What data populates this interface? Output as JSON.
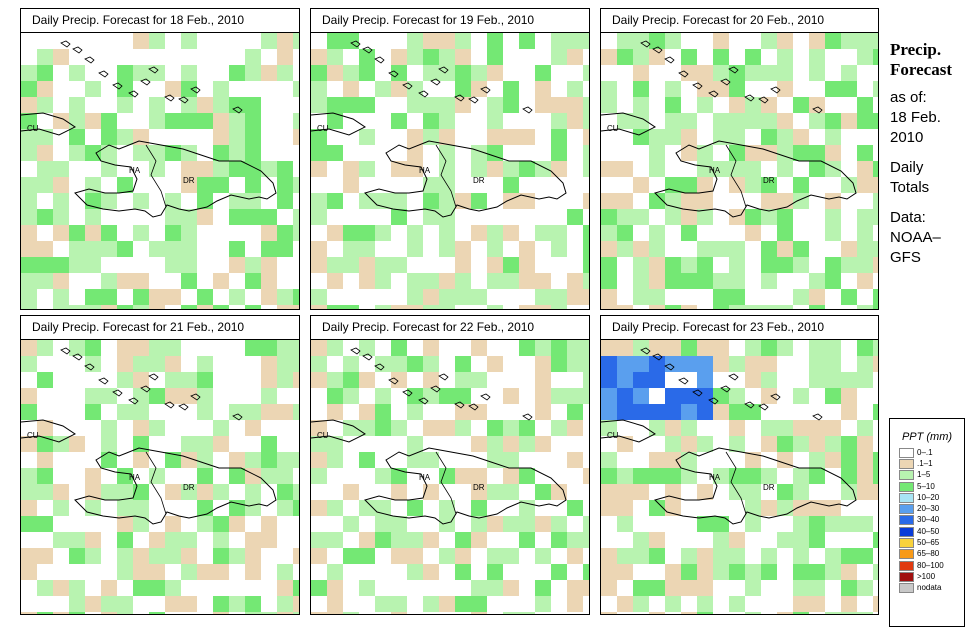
{
  "panels": [
    {
      "title": "Daily Precip. Forecast for  18 Feb., 2010",
      "day": 18
    },
    {
      "title": "Daily Precip. Forecast for  19 Feb., 2010",
      "day": 19
    },
    {
      "title": "Daily Precip. Forecast for  20 Feb., 2010",
      "day": 20
    },
    {
      "title": "Daily Precip. Forecast for  21 Feb., 2010",
      "day": 21
    },
    {
      "title": "Daily Precip. Forecast for  22 Feb., 2010",
      "day": 22
    },
    {
      "title": "Daily Precip. Forecast for  23 Feb., 2010",
      "day": 23
    }
  ],
  "map_labels": {
    "cuba": "CU",
    "haiti": "HA",
    "dr": "DR"
  },
  "side": {
    "title_line1": "Precip.",
    "title_line2": "Forecast",
    "asof": "as of:",
    "date_line1": "18 Feb.",
    "date_line2": "2010",
    "totals_line1": "Daily",
    "totals_line2": "Totals",
    "data_line1": "Data:",
    "data_line2": "NOAA–",
    "data_line3": "GFS"
  },
  "legend": {
    "title": "PPT (mm)",
    "items": [
      {
        "label": "0–.1",
        "color": "#ffffff"
      },
      {
        "label": ".1–1",
        "color": "#ecd6b4"
      },
      {
        "label": "1–5",
        "color": "#b8f3b0"
      },
      {
        "label": "5–10",
        "color": "#74e874"
      },
      {
        "label": "10–20",
        "color": "#a8e4f4"
      },
      {
        "label": "20–30",
        "color": "#5a9fee"
      },
      {
        "label": "30–40",
        "color": "#2a6ae8"
      },
      {
        "label": "40–50",
        "color": "#0a3cd8"
      },
      {
        "label": "50–65",
        "color": "#f8d23c"
      },
      {
        "label": "65–80",
        "color": "#f89a18"
      },
      {
        "label": "80–100",
        "color": "#e03a10"
      },
      {
        "label": ">100",
        "color": "#a01010"
      },
      {
        "label": "nodata",
        "color": "#c8c8c8"
      }
    ]
  }
}
